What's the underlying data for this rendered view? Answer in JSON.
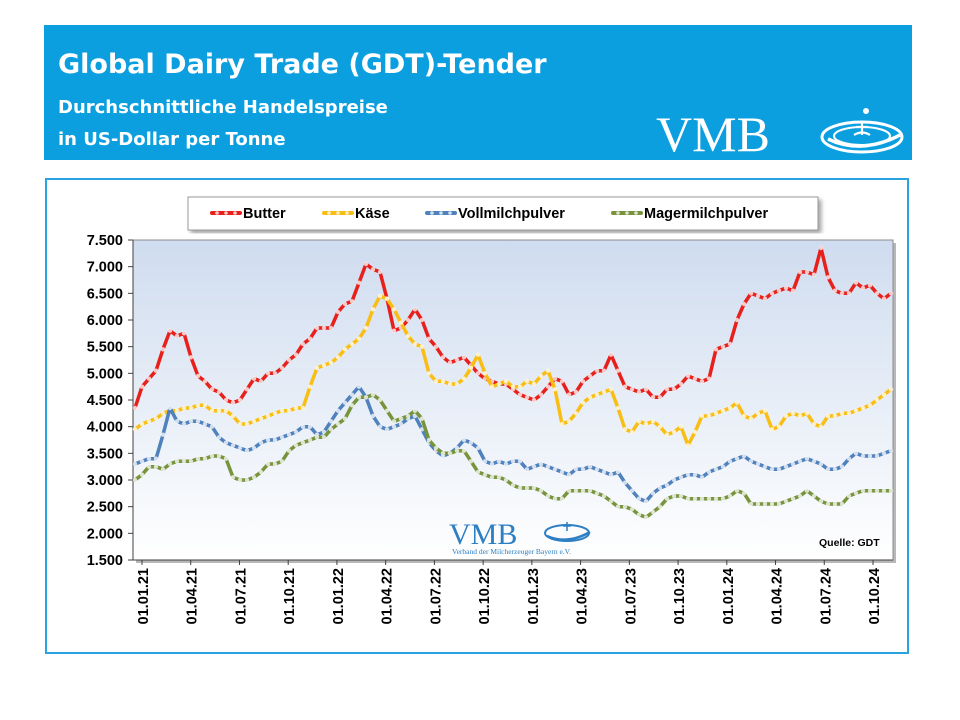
{
  "header": {
    "title": "Global Dairy Trade (GDT)-Tender",
    "subtitle_line1": "Durchschnittliche Handelspreise",
    "subtitle_line2": "in US-Dollar per Tonne",
    "logo_text": "VMB"
  },
  "watermark": {
    "logo_text": "VMB",
    "tagline": "Verband der Milcherzeuger Bayern e.V."
  },
  "source_label": "Quelle:  GDT",
  "colors": {
    "header_bg": "#0b9fe0",
    "frame": "#29a3df",
    "plot_bg_top": "#cfdcef",
    "plot_bg_bottom": "#ffffff"
  },
  "chart_data": {
    "type": "line",
    "title": "",
    "xlabel": "",
    "ylabel": "",
    "ylim": [
      1500,
      7500
    ],
    "yticks": [
      1500,
      2000,
      2500,
      3000,
      3500,
      4000,
      4500,
      5000,
      5500,
      6000,
      6500,
      7000,
      7500
    ],
    "ytick_labels": [
      "1.500",
      "2.000",
      "2.500",
      "3.000",
      "3.500",
      "4.000",
      "4.500",
      "5.000",
      "5.500",
      "6.000",
      "6.500",
      "7.000",
      "7.500"
    ],
    "x_tick_labels": [
      "01.01.21",
      "01.04.21",
      "01.07.21",
      "01.10.21",
      "01.01.22",
      "01.04.22",
      "01.07.22",
      "01.10.22",
      "01.01.23",
      "01.04.23",
      "01.07.23",
      "01.10.23",
      "01.01.24",
      "01.04.24",
      "01.07.24",
      "01.10.24"
    ],
    "x_start": "01.01.21",
    "x_end": "01.10.24",
    "legend_position": "top",
    "grid": false,
    "series": [
      {
        "name": "Butter",
        "color": "#e8201c",
        "values": [
          4350,
          4750,
          4900,
          5050,
          5450,
          5800,
          5700,
          5750,
          5300,
          4950,
          4850,
          4700,
          4650,
          4500,
          4450,
          4500,
          4700,
          4900,
          4850,
          5000,
          5000,
          5100,
          5250,
          5350,
          5550,
          5650,
          5850,
          5850,
          5850,
          6150,
          6300,
          6350,
          6700,
          7050,
          6950,
          6900,
          6400,
          5800,
          5850,
          6000,
          6200,
          6000,
          5650,
          5500,
          5300,
          5200,
          5250,
          5300,
          5150,
          5000,
          4900,
          4850,
          4800,
          4800,
          4700,
          4600,
          4550,
          4500,
          4600,
          4750,
          4900,
          4850,
          4600,
          4650,
          4850,
          4950,
          5050,
          5050,
          5350,
          5050,
          4750,
          4700,
          4650,
          4700,
          4550,
          4550,
          4700,
          4700,
          4800,
          4950,
          4900,
          4850,
          4900,
          5450,
          5500,
          5550,
          6000,
          6300,
          6500,
          6450,
          6400,
          6500,
          6550,
          6600,
          6550,
          6900,
          6900,
          6850,
          7350,
          6800,
          6550,
          6500,
          6500,
          6700,
          6600,
          6650,
          6500,
          6400,
          6500
        ]
      },
      {
        "name": "Käse",
        "color": "#f9be14",
        "values": [
          3950,
          4050,
          4100,
          4150,
          4250,
          4300,
          4300,
          4350,
          4350,
          4400,
          4400,
          4300,
          4300,
          4300,
          4200,
          4050,
          4050,
          4100,
          4150,
          4200,
          4250,
          4300,
          4300,
          4350,
          4350,
          4750,
          5100,
          5150,
          5200,
          5300,
          5450,
          5550,
          5650,
          5850,
          6200,
          6450,
          6400,
          6200,
          5950,
          5700,
          5550,
          5500,
          5000,
          4850,
          4850,
          4800,
          4800,
          4900,
          5100,
          5350,
          5000,
          4750,
          4800,
          4850,
          4750,
          4750,
          4850,
          4800,
          4950,
          5050,
          4700,
          4050,
          4100,
          4250,
          4450,
          4550,
          4600,
          4650,
          4700,
          4350,
          3950,
          3900,
          4100,
          4050,
          4100,
          4000,
          3850,
          3900,
          4000,
          3650,
          3900,
          4200,
          4200,
          4250,
          4300,
          4350,
          4450,
          4200,
          4150,
          4250,
          4300,
          3950,
          4000,
          4200,
          4250,
          4200,
          4250,
          4050,
          4000,
          4200,
          4200,
          4250,
          4250,
          4300,
          4350,
          4400,
          4500,
          4600,
          4700
        ]
      },
      {
        "name": "Vollmilchpulver",
        "color": "#4f81bd",
        "values": [
          3300,
          3350,
          3400,
          3400,
          3850,
          4350,
          4100,
          4050,
          4100,
          4100,
          4050,
          4000,
          3800,
          3700,
          3650,
          3600,
          3550,
          3600,
          3700,
          3750,
          3750,
          3800,
          3850,
          3900,
          4000,
          4000,
          3850,
          3900,
          4100,
          4300,
          4450,
          4600,
          4750,
          4550,
          4200,
          4000,
          3950,
          4000,
          4050,
          4150,
          4200,
          3950,
          3700,
          3550,
          3450,
          3500,
          3600,
          3750,
          3700,
          3600,
          3350,
          3300,
          3350,
          3300,
          3350,
          3350,
          3200,
          3250,
          3300,
          3250,
          3200,
          3150,
          3100,
          3200,
          3200,
          3250,
          3200,
          3150,
          3100,
          3150,
          2950,
          2800,
          2650,
          2600,
          2750,
          2850,
          2900,
          3000,
          3050,
          3100,
          3100,
          3050,
          3150,
          3200,
          3250,
          3350,
          3400,
          3450,
          3350,
          3300,
          3250,
          3200,
          3200,
          3250,
          3300,
          3350,
          3400,
          3350,
          3300,
          3200,
          3200,
          3250,
          3400,
          3500,
          3450,
          3450,
          3450,
          3500,
          3550
        ]
      },
      {
        "name": "Magermilchpulver",
        "color": "#77933c",
        "values": [
          3000,
          3100,
          3250,
          3250,
          3200,
          3300,
          3350,
          3350,
          3350,
          3400,
          3400,
          3450,
          3450,
          3400,
          3050,
          3000,
          3000,
          3050,
          3150,
          3300,
          3300,
          3350,
          3550,
          3650,
          3700,
          3750,
          3800,
          3800,
          3950,
          4050,
          4150,
          4400,
          4550,
          4550,
          4600,
          4500,
          4300,
          4100,
          4150,
          4200,
          4300,
          4150,
          3750,
          3600,
          3500,
          3500,
          3550,
          3550,
          3350,
          3150,
          3100,
          3050,
          3050,
          3000,
          2900,
          2850,
          2850,
          2850,
          2800,
          2700,
          2650,
          2650,
          2800,
          2800,
          2800,
          2800,
          2750,
          2700,
          2600,
          2500,
          2500,
          2450,
          2350,
          2300,
          2400,
          2500,
          2650,
          2700,
          2700,
          2650,
          2650,
          2650,
          2650,
          2650,
          2650,
          2700,
          2800,
          2750,
          2550,
          2550,
          2550,
          2550,
          2550,
          2600,
          2650,
          2700,
          2800,
          2700,
          2600,
          2550,
          2550,
          2550,
          2700,
          2750,
          2800,
          2800,
          2800,
          2800,
          2800
        ]
      }
    ]
  }
}
